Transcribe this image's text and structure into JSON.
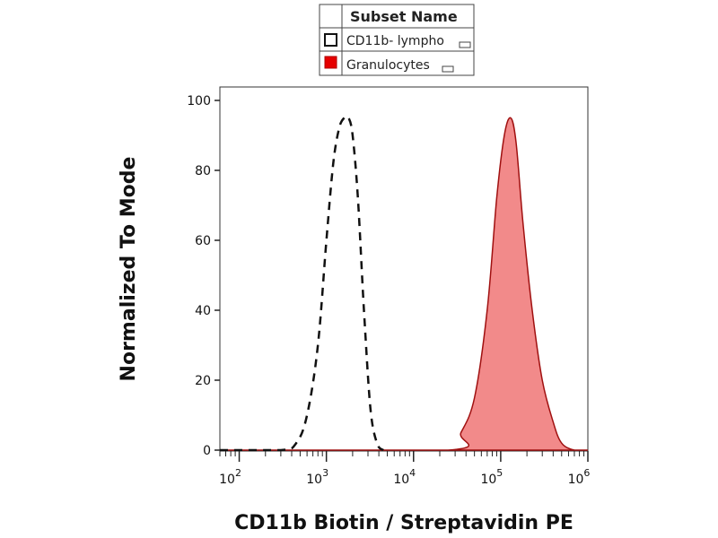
{
  "chart_data": {
    "type": "area",
    "xlabel": "CD11b Biotin / Streptavidin PE",
    "ylabel": "Normalized To Mode",
    "x_scale": "log",
    "xlim": [
      60,
      1000000
    ],
    "ylim": [
      0,
      100
    ],
    "x_ticks": [
      {
        "value": 100,
        "base": "10",
        "exp": "2"
      },
      {
        "value": 1000,
        "base": "10",
        "exp": "3"
      },
      {
        "value": 10000,
        "base": "10",
        "exp": "4"
      },
      {
        "value": 100000,
        "base": "10",
        "exp": "5"
      },
      {
        "value": 1000000,
        "base": "10",
        "exp": "6"
      }
    ],
    "y_ticks": [
      0,
      20,
      40,
      60,
      80,
      100
    ],
    "grid": false,
    "legend": {
      "title": "Subset Name",
      "position": "top-center"
    },
    "series": [
      {
        "name": "CD11b- lympho",
        "style": "dashed-outline",
        "color": "#111111",
        "x": [
          60,
          300,
          450,
          600,
          800,
          1000,
          1200,
          1400,
          1600,
          1800,
          2000,
          2300,
          2700,
          3200,
          3800,
          4500
        ],
        "y": [
          0,
          0,
          2,
          10,
          30,
          60,
          82,
          92,
          95,
          95,
          90,
          72,
          40,
          12,
          2,
          0
        ]
      },
      {
        "name": "Granulocytes",
        "style": "filled",
        "color": "#f28a8a",
        "x": [
          60,
          25000,
          35000,
          50000,
          70000,
          90000,
          110000,
          130000,
          150000,
          180000,
          230000,
          300000,
          400000,
          500000,
          700000,
          1000000
        ],
        "y": [
          0,
          0,
          5,
          15,
          40,
          72,
          90,
          95,
          88,
          65,
          40,
          20,
          8,
          2,
          0,
          0
        ]
      }
    ]
  }
}
